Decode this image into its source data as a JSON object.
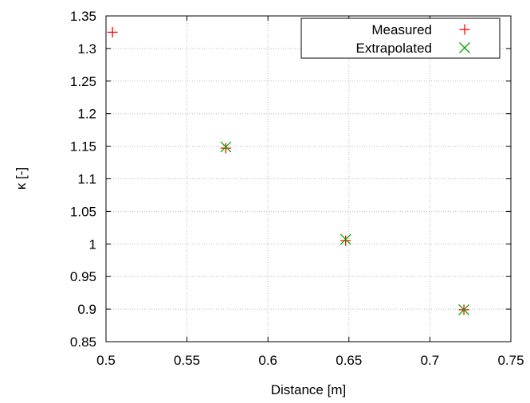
{
  "chart_data": {
    "type": "scatter",
    "xlabel": "Distance [m]",
    "ylabel": "κ [-]",
    "xlim": [
      0.5,
      0.75
    ],
    "ylim": [
      0.85,
      1.35
    ],
    "x_ticks": [
      "0.5",
      "0.55",
      "0.6",
      "0.65",
      "0.7",
      "0.75"
    ],
    "y_ticks": [
      "0.85",
      "0.9",
      "0.95",
      "1",
      "1.05",
      "1.1",
      "1.15",
      "1.2",
      "1.25",
      "1.3",
      "1.35"
    ],
    "grid": true,
    "legend_position": "top-right",
    "series": [
      {
        "name": "Measured",
        "marker": "plus",
        "color": "#ff0000",
        "x": [
          0.504,
          0.574,
          0.648,
          0.721
        ],
        "y": [
          1.325,
          1.147,
          1.005,
          0.899
        ]
      },
      {
        "name": "Extrapolated",
        "marker": "cross",
        "color": "#00aa00",
        "x": [
          0.574,
          0.648,
          0.721
        ],
        "y": [
          1.149,
          1.007,
          0.899
        ]
      }
    ]
  }
}
